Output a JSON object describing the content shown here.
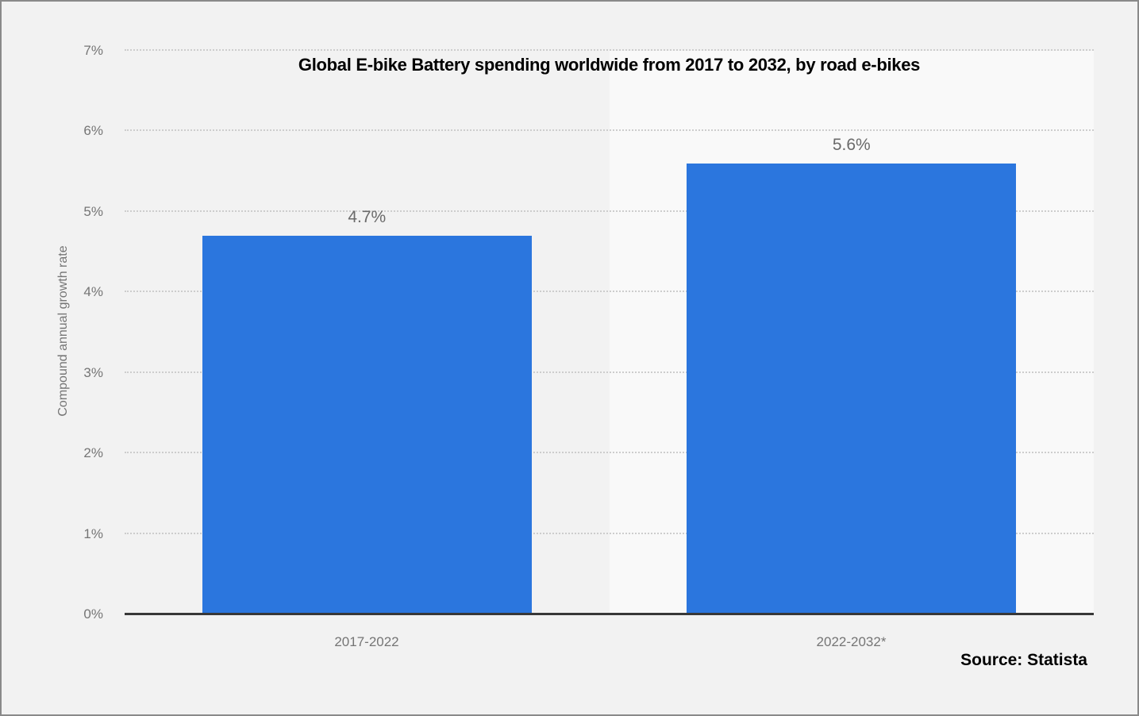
{
  "chart_data": {
    "type": "bar",
    "title": "Global E-bike Battery spending worldwide from 2017 to 2032, by road e-bikes",
    "categories": [
      "2017-2022",
      "2022-2032*"
    ],
    "values": [
      4.7,
      5.6
    ],
    "value_labels": [
      "4.7%",
      "5.6%"
    ],
    "xlabel": "",
    "ylabel": "Compound annual growth rate",
    "ylim": [
      0,
      7
    ],
    "yticks": [
      "0%",
      "1%",
      "2%",
      "3%",
      "4%",
      "5%",
      "6%",
      "7%"
    ],
    "grid": "horizontal-dotted",
    "legend_position": "none",
    "bar_color": "#2b76de",
    "plot_background": "#f2f2f2",
    "alternate_band_color": "#f9f9f9",
    "axis_line_color": "#383838",
    "gridline_color": "#cdcdcd"
  },
  "source": {
    "label": "Source: Statista"
  }
}
